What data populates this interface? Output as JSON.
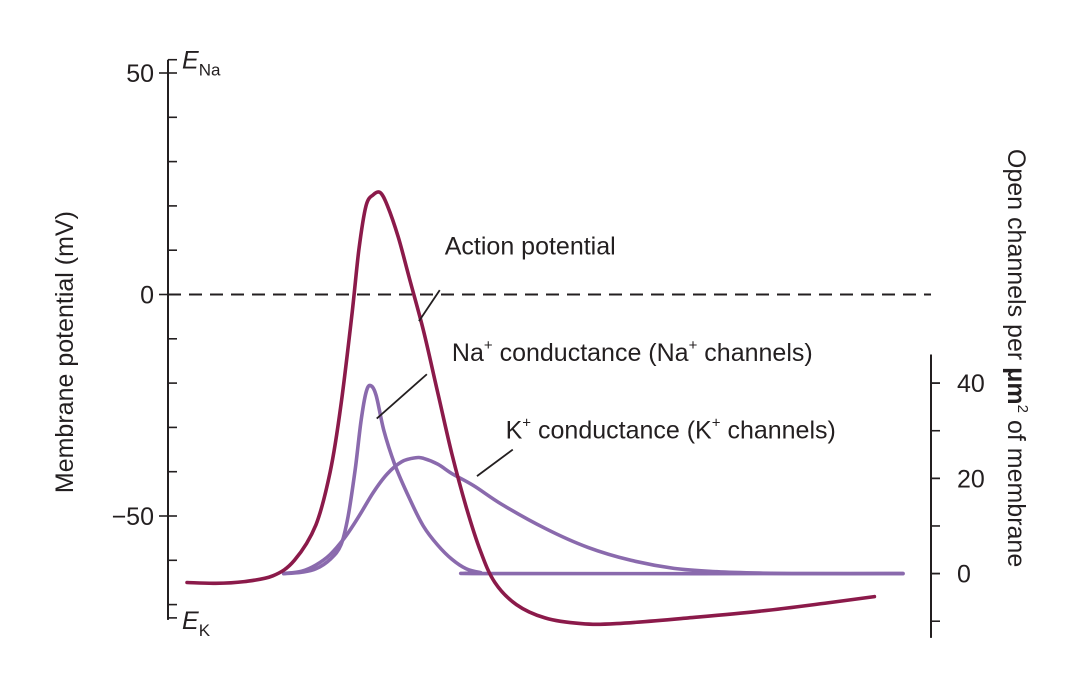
{
  "chart_data": {
    "type": "line",
    "colors": {
      "action_potential": "#8b1a4a",
      "conductance": "#8a6aad",
      "axis": "#231f20"
    },
    "left_axis": {
      "label": "Membrane potential (mV)",
      "range": [
        -75,
        55
      ],
      "ticks": [
        {
          "value": 50,
          "label": "50"
        },
        {
          "value": 0,
          "label": "0"
        },
        {
          "value": -50,
          "label": "−50"
        }
      ],
      "minor_tick_step": 10,
      "E_Na": {
        "value": 53,
        "base": "E",
        "sub": "Na"
      },
      "E_K": {
        "value": -73,
        "base": "E",
        "sub": "K"
      }
    },
    "right_axis": {
      "label_parts": [
        "Open channels per ",
        "μm",
        "2",
        " of membrane"
      ],
      "ticks": [
        {
          "value": 40,
          "label": "40"
        },
        {
          "value": 20,
          "label": "20"
        },
        {
          "value": 0,
          "label": "0"
        }
      ],
      "mv_per_unit": 1.075,
      "zero_at_mv": -63,
      "extent": [
        -13.5,
        46
      ]
    },
    "zero_line": {
      "value": 0,
      "style": "dashed"
    },
    "x_range": [
      0,
      100
    ],
    "series": [
      {
        "key": "action_potential",
        "axis": "left",
        "points": [
          [
            0,
            -65
          ],
          [
            4,
            -65.2
          ],
          [
            8,
            -64.8
          ],
          [
            12,
            -63.5
          ],
          [
            15,
            -60
          ],
          [
            18,
            -52
          ],
          [
            20,
            -40
          ],
          [
            21.5,
            -25
          ],
          [
            23,
            -5
          ],
          [
            24,
            10
          ],
          [
            25,
            20
          ],
          [
            26,
            22.5
          ],
          [
            27,
            23
          ],
          [
            28,
            20
          ],
          [
            29.5,
            13
          ],
          [
            31,
            4
          ],
          [
            33,
            -8
          ],
          [
            35,
            -22
          ],
          [
            37,
            -36
          ],
          [
            39,
            -48
          ],
          [
            41,
            -58
          ],
          [
            43,
            -65
          ],
          [
            46,
            -70
          ],
          [
            50,
            -73
          ],
          [
            55,
            -74.3
          ],
          [
            60,
            -74.3
          ],
          [
            70,
            -73
          ],
          [
            80,
            -71.5
          ],
          [
            90,
            -69.5
          ],
          [
            96,
            -68.2
          ]
        ]
      },
      {
        "key": "na_conductance",
        "axis": "right",
        "points": [
          [
            13.5,
            0
          ],
          [
            16,
            0.3
          ],
          [
            18,
            1
          ],
          [
            20,
            3
          ],
          [
            21.5,
            6
          ],
          [
            22.5,
            12
          ],
          [
            23.5,
            22
          ],
          [
            24.3,
            32
          ],
          [
            25,
            38
          ],
          [
            25.6,
            39.5
          ],
          [
            26.4,
            37.5
          ],
          [
            27.5,
            30
          ],
          [
            29,
            23
          ],
          [
            31,
            16
          ],
          [
            33,
            10
          ],
          [
            35,
            6
          ],
          [
            37,
            3
          ],
          [
            39,
            1
          ],
          [
            41,
            0.2
          ],
          [
            43,
            0
          ],
          [
            100,
            0
          ]
        ]
      },
      {
        "key": "k_conductance",
        "axis": "right",
        "points": [
          [
            13.5,
            0
          ],
          [
            16,
            0.5
          ],
          [
            18,
            1.8
          ],
          [
            20,
            4
          ],
          [
            22,
            7.5
          ],
          [
            24,
            12
          ],
          [
            26,
            17
          ],
          [
            28,
            21
          ],
          [
            30,
            23.5
          ],
          [
            31.8,
            24.3
          ],
          [
            33,
            24.2
          ],
          [
            35,
            23
          ],
          [
            37,
            21
          ],
          [
            40,
            18.5
          ],
          [
            44,
            14.5
          ],
          [
            50,
            9.5
          ],
          [
            56,
            5.5
          ],
          [
            62,
            2.8
          ],
          [
            68,
            1.1
          ],
          [
            74,
            0.4
          ],
          [
            80,
            0.1
          ],
          [
            86,
            0
          ],
          [
            100,
            0
          ]
        ]
      }
    ],
    "annotations": [
      {
        "key": "action_potential",
        "parts": [
          {
            "t": "Action potential"
          }
        ],
        "leader": [
          [
            32.4,
            -6
          ],
          [
            35.3,
            1
          ]
        ],
        "anchor": [
          35.3,
          0
        ],
        "text_at": [
          36,
          9
        ]
      },
      {
        "key": "na_conductance",
        "parts": [
          {
            "t": "Na"
          },
          {
            "t": "+",
            "sup": true
          },
          {
            "t": " conductance (Na"
          },
          {
            "t": "+",
            "sup": true
          },
          {
            "t": " channels)"
          }
        ],
        "leader": [
          [
            26.5,
            -28
          ],
          [
            33.5,
            -18
          ]
        ],
        "text_at": [
          37,
          -15
        ]
      },
      {
        "key": "k_conductance",
        "parts": [
          {
            "t": "K"
          },
          {
            "t": "+",
            "sup": true
          },
          {
            "t": " conductance (K"
          },
          {
            "t": "+",
            "sup": true
          },
          {
            "t": " channels)"
          }
        ],
        "leader": [
          [
            40.5,
            -41
          ],
          [
            45.5,
            -35
          ]
        ],
        "text_at": [
          44.5,
          -32.5
        ]
      }
    ]
  }
}
